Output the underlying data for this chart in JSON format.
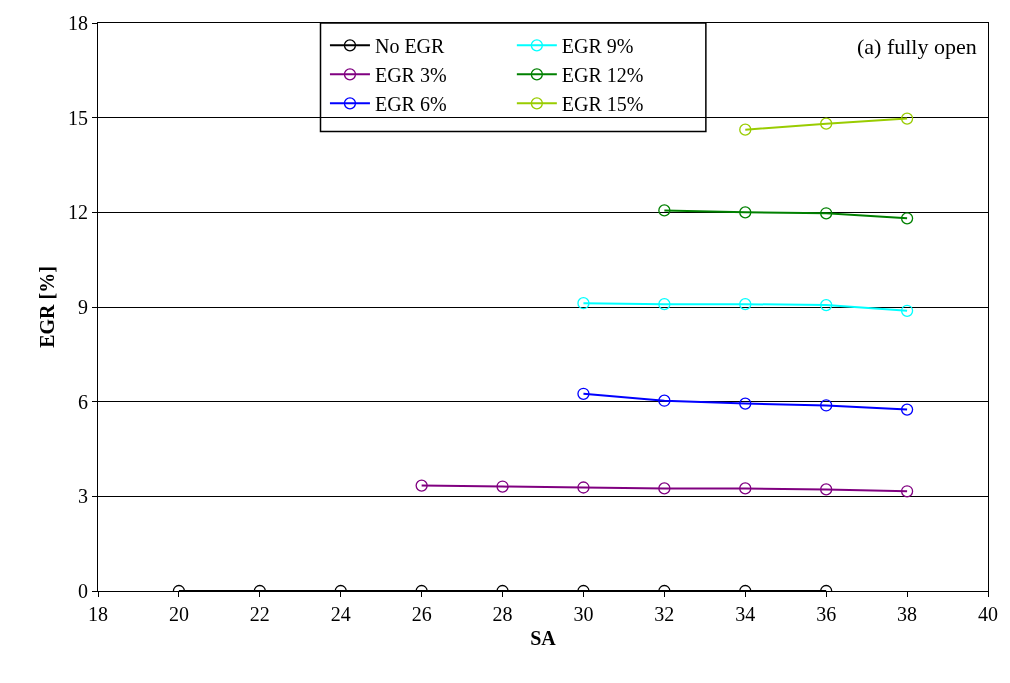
{
  "chart_data": {
    "type": "line",
    "xlabel": "SA",
    "ylabel": "EGR [%]",
    "annotations": [
      "(a) fully open"
    ],
    "xlim": [
      18,
      40
    ],
    "xticks": [
      18,
      20,
      22,
      24,
      26,
      28,
      30,
      32,
      34,
      36,
      38,
      40
    ],
    "ylim": [
      0,
      18
    ],
    "yticks": [
      0,
      3,
      6,
      9,
      12,
      15,
      18
    ],
    "grid": "y",
    "legend": "top",
    "marker": "circle",
    "line_style": "solid",
    "series": [
      {
        "name": "No EGR",
        "color": "#000000",
        "x": [
          20,
          22,
          24,
          26,
          28,
          30,
          32,
          34,
          36
        ],
        "values": [
          0,
          0,
          0,
          0,
          0,
          0,
          0,
          0,
          0
        ]
      },
      {
        "name": "EGR 3%",
        "color": "#800080",
        "x": [
          26,
          28,
          30,
          32,
          34,
          36,
          38
        ],
        "values": [
          3.34,
          3.31,
          3.28,
          3.25,
          3.25,
          3.22,
          3.16
        ]
      },
      {
        "name": "EGR 6%",
        "color": "#0000ff",
        "x": [
          30,
          32,
          34,
          36,
          38
        ],
        "values": [
          6.25,
          6.03,
          5.94,
          5.88,
          5.75
        ]
      },
      {
        "name": "EGR 9%",
        "color": "#00ffff",
        "x": [
          30,
          32,
          34,
          36,
          38
        ],
        "values": [
          9.12,
          9.09,
          9.09,
          9.06,
          8.88
        ]
      },
      {
        "name": "EGR 12%",
        "color": "#008000",
        "x": [
          32,
          34,
          36,
          38
        ],
        "values": [
          12.06,
          12.0,
          11.97,
          11.81
        ]
      },
      {
        "name": "EGR 15%",
        "color": "#99cc00",
        "x": [
          34,
          36,
          38
        ],
        "values": [
          14.62,
          14.81,
          14.97
        ]
      }
    ]
  }
}
